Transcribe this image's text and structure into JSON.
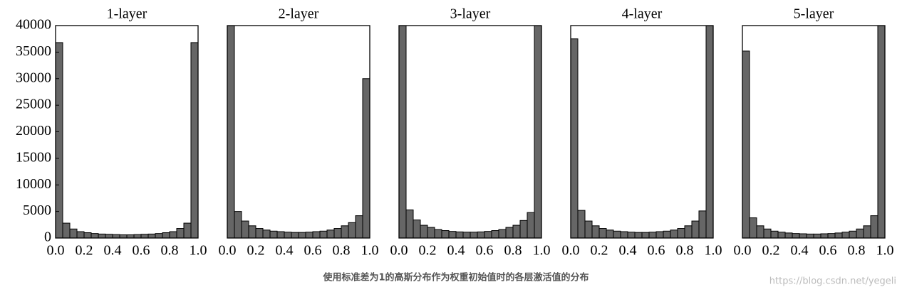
{
  "chart_data": [
    {
      "type": "histogram",
      "title": "1-layer",
      "bins": [
        0,
        0.05,
        0.1,
        0.15,
        0.2,
        0.25,
        0.3,
        0.35,
        0.4,
        0.45,
        0.5,
        0.55,
        0.6,
        0.65,
        0.7,
        0.75,
        0.8,
        0.85,
        0.9,
        0.95,
        1
      ],
      "values": [
        36800,
        2800,
        1700,
        1200,
        1000,
        850,
        750,
        700,
        650,
        600,
        600,
        650,
        700,
        750,
        850,
        1000,
        1200,
        1800,
        2800,
        36800
      ],
      "color": "#666666",
      "xlim": [
        0,
        1
      ],
      "xticks": [
        {
          "value": 0,
          "label": "0.0"
        },
        0.2,
        0.4,
        0.6,
        0.8,
        {
          "value": 1,
          "label": "1.0"
        }
      ],
      "ylim": [
        0,
        40000
      ],
      "yticks": [
        0,
        5000,
        10000,
        15000,
        20000,
        25000,
        30000,
        35000,
        40000
      ]
    },
    {
      "type": "histogram",
      "title": "2-layer",
      "bins": [
        0,
        0.05,
        0.1,
        0.15,
        0.2,
        0.25,
        0.3,
        0.35,
        0.4,
        0.45,
        0.5,
        0.55,
        0.6,
        0.65,
        0.7,
        0.75,
        0.8,
        0.85,
        0.9,
        0.95,
        1
      ],
      "values": [
        40000,
        5000,
        3200,
        2300,
        1800,
        1500,
        1300,
        1200,
        1100,
        1050,
        1050,
        1100,
        1200,
        1300,
        1500,
        1800,
        2300,
        2900,
        4200,
        30000
      ],
      "color": "#666666",
      "xlim": [
        0,
        1
      ],
      "xticks": [
        {
          "value": 0,
          "label": "0.0"
        },
        0.2,
        0.4,
        0.6,
        0.8,
        {
          "value": 1,
          "label": "1.0"
        }
      ],
      "ylim": [
        0,
        40000
      ]
    },
    {
      "type": "histogram",
      "title": "3-layer",
      "bins": [
        0,
        0.05,
        0.1,
        0.15,
        0.2,
        0.25,
        0.3,
        0.35,
        0.4,
        0.45,
        0.5,
        0.55,
        0.6,
        0.65,
        0.7,
        0.75,
        0.8,
        0.85,
        0.9,
        0.95,
        1
      ],
      "values": [
        40000,
        5300,
        3400,
        2400,
        2000,
        1600,
        1400,
        1250,
        1150,
        1100,
        1100,
        1150,
        1250,
        1400,
        1600,
        2000,
        2400,
        3300,
        4800,
        40000
      ],
      "color": "#666666",
      "xlim": [
        0,
        1
      ],
      "xticks": [
        {
          "value": 0,
          "label": "0.0"
        },
        0.2,
        0.4,
        0.6,
        0.8,
        {
          "value": 1,
          "label": "1.0"
        }
      ],
      "ylim": [
        0,
        40000
      ]
    },
    {
      "type": "histogram",
      "title": "4-layer",
      "bins": [
        0,
        0.05,
        0.1,
        0.15,
        0.2,
        0.25,
        0.3,
        0.35,
        0.4,
        0.45,
        0.5,
        0.55,
        0.6,
        0.65,
        0.7,
        0.75,
        0.8,
        0.85,
        0.9,
        0.95,
        1
      ],
      "values": [
        37500,
        5200,
        3200,
        2300,
        1800,
        1500,
        1300,
        1200,
        1100,
        1050,
        1050,
        1100,
        1200,
        1300,
        1500,
        1800,
        2300,
        3200,
        5100,
        40000
      ],
      "color": "#666666",
      "xlim": [
        0,
        1
      ],
      "xticks": [
        {
          "value": 0,
          "label": "0.0"
        },
        0.2,
        0.4,
        0.6,
        0.8,
        {
          "value": 1,
          "label": "1.0"
        }
      ],
      "ylim": [
        0,
        40000
      ]
    },
    {
      "type": "histogram",
      "title": "5-layer",
      "bins": [
        0,
        0.05,
        0.1,
        0.15,
        0.2,
        0.25,
        0.3,
        0.35,
        0.4,
        0.45,
        0.5,
        0.55,
        0.6,
        0.65,
        0.7,
        0.75,
        0.8,
        0.85,
        0.9,
        0.95,
        1
      ],
      "values": [
        35200,
        3800,
        2300,
        1700,
        1300,
        1100,
        950,
        850,
        800,
        750,
        750,
        800,
        850,
        950,
        1100,
        1300,
        1700,
        2300,
        4200,
        40000
      ],
      "color": "#666666",
      "xlim": [
        0,
        1
      ],
      "xticks": [
        {
          "value": 0,
          "label": "0.0"
        },
        0.2,
        0.4,
        0.6,
        0.8,
        {
          "value": 1,
          "label": "1.0"
        }
      ],
      "ylim": [
        0,
        40000
      ]
    }
  ],
  "caption": "使用标准差为1的高斯分布作为权重初始值时的各层激活值的分布",
  "watermark": "https://blog.csdn.net/yegeli"
}
